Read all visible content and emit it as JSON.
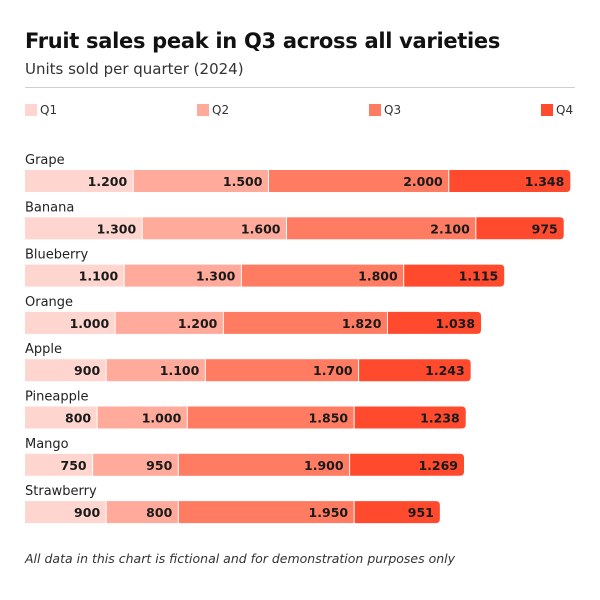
{
  "chart_data": {
    "type": "bar",
    "orientation": "horizontal",
    "stacked": true,
    "title": "Fruit sales peak in Q3 across all varieties",
    "subtitle": "Units sold per quarter (2024)",
    "categories": [
      "Grape",
      "Banana",
      "Blueberry",
      "Orange",
      "Apple",
      "Pineapple",
      "Mango",
      "Strawberry"
    ],
    "series": [
      {
        "name": "Q1",
        "color": "#ffd6cf",
        "values": [
          1200,
          1300,
          1100,
          1000,
          900,
          800,
          750,
          900
        ],
        "labels": [
          "1.200",
          "1.300",
          "1.100",
          "1.000",
          "900",
          "800",
          "750",
          "900"
        ]
      },
      {
        "name": "Q2",
        "color": "#ffaa9a",
        "values": [
          1500,
          1600,
          1300,
          1200,
          1100,
          1000,
          950,
          800
        ],
        "labels": [
          "1.500",
          "1.600",
          "1.300",
          "1.200",
          "1.100",
          "1.000",
          "950",
          "800"
        ]
      },
      {
        "name": "Q3",
        "color": "#ff7b62",
        "values": [
          2000,
          2100,
          1800,
          1820,
          1700,
          1850,
          1900,
          1950
        ],
        "labels": [
          "2.000",
          "2.100",
          "1.800",
          "1.820",
          "1.700",
          "1.850",
          "1.900",
          "1.950"
        ]
      },
      {
        "name": "Q4",
        "color": "#ff4a2e",
        "values": [
          1348,
          975,
          1115,
          1038,
          1243,
          1238,
          1269,
          951
        ],
        "labels": [
          "1.348",
          "975",
          "1.115",
          "1.038",
          "1.243",
          "1.238",
          "1.269",
          "951"
        ]
      }
    ],
    "xlim": [
      0,
      6100
    ],
    "grid": false,
    "legend": "top",
    "footnote": "All data in this chart is fictional and for demonstration purposes only"
  }
}
